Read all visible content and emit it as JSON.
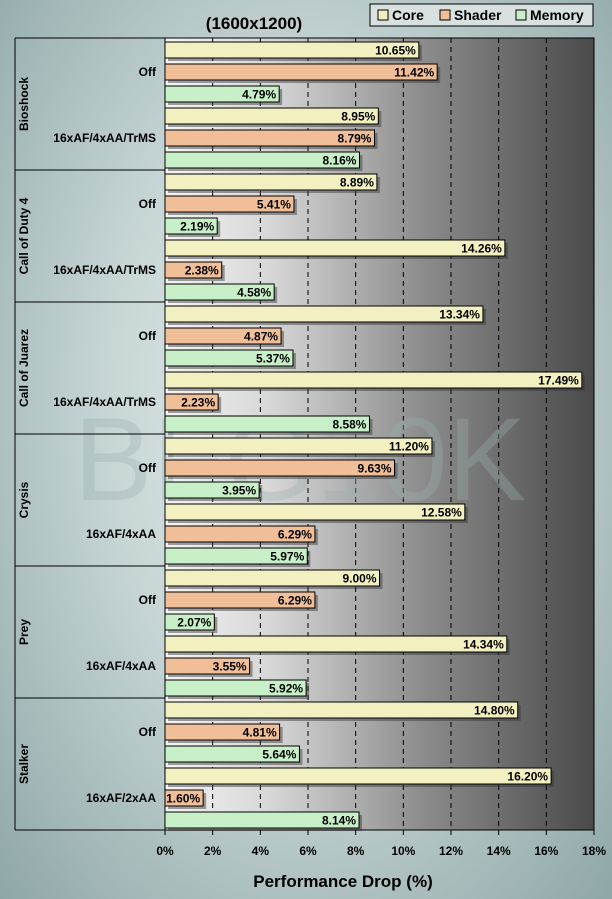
{
  "chart_data": {
    "type": "bar",
    "orientation": "horizontal",
    "title": "(1600x1200)",
    "xlabel": "Performance Drop (%)",
    "xlim": [
      0,
      18
    ],
    "xticks": [
      "0%",
      "2%",
      "4%",
      "6%",
      "8%",
      "10%",
      "12%",
      "14%",
      "16%",
      "18%"
    ],
    "grid": true,
    "watermark": "BFG10K",
    "legend": {
      "placement": "top-right"
    },
    "series": [
      {
        "name": "Core",
        "color": "#f2f0c0"
      },
      {
        "name": "Shader",
        "color": "#f0bf98"
      },
      {
        "name": "Memory",
        "color": "#c8f0c8"
      }
    ],
    "groups": [
      {
        "game": "Bioshock",
        "rows": [
          {
            "setting": "Off",
            "values": [
              10.65,
              11.42,
              4.79
            ],
            "labels": [
              "10.65%",
              "11.42%",
              "4.79%"
            ]
          },
          {
            "setting": "16xAF/4xAA/TrMS",
            "values": [
              8.95,
              8.79,
              8.16
            ],
            "labels": [
              "8.95%",
              "8.79%",
              "8.16%"
            ]
          }
        ]
      },
      {
        "game": "Call of Duty 4",
        "rows": [
          {
            "setting": "Off",
            "values": [
              8.89,
              5.41,
              2.19
            ],
            "labels": [
              "8.89%",
              "5.41%",
              "2.19%"
            ]
          },
          {
            "setting": "16xAF/4xAA/TrMS",
            "values": [
              14.26,
              2.38,
              4.58
            ],
            "labels": [
              "14.26%",
              "2.38%",
              "4.58%"
            ]
          }
        ]
      },
      {
        "game": "Call of Juarez",
        "rows": [
          {
            "setting": "Off",
            "values": [
              13.34,
              4.87,
              5.37
            ],
            "labels": [
              "13.34%",
              "4.87%",
              "5.37%"
            ]
          },
          {
            "setting": "16xAF/4xAA/TrMS",
            "values": [
              17.49,
              2.23,
              8.58
            ],
            "labels": [
              "17.49%",
              "2.23%",
              "8.58%"
            ]
          }
        ]
      },
      {
        "game": "Crysis",
        "rows": [
          {
            "setting": "Off",
            "values": [
              11.2,
              9.63,
              3.95
            ],
            "labels": [
              "11.20%",
              "9.63%",
              "3.95%"
            ]
          },
          {
            "setting": "16xAF/4xAA",
            "values": [
              12.58,
              6.29,
              5.97
            ],
            "labels": [
              "12.58%",
              "6.29%",
              "5.97%"
            ]
          }
        ]
      },
      {
        "game": "Prey",
        "rows": [
          {
            "setting": "Off",
            "values": [
              9.0,
              6.29,
              2.07
            ],
            "labels": [
              "9.00%",
              "6.29%",
              "2.07%"
            ]
          },
          {
            "setting": "16xAF/4xAA",
            "values": [
              14.34,
              3.55,
              5.92
            ],
            "labels": [
              "14.34%",
              "3.55%",
              "5.92%"
            ]
          }
        ]
      },
      {
        "game": "Stalker",
        "rows": [
          {
            "setting": "Off",
            "values": [
              14.8,
              4.81,
              5.64
            ],
            "labels": [
              "14.80%",
              "4.81%",
              "5.64%"
            ]
          },
          {
            "setting": "16xAF/2xAA",
            "values": [
              16.2,
              1.6,
              8.14
            ],
            "labels": [
              "16.20%",
              "1.60%",
              "8.14%"
            ]
          }
        ]
      }
    ]
  }
}
